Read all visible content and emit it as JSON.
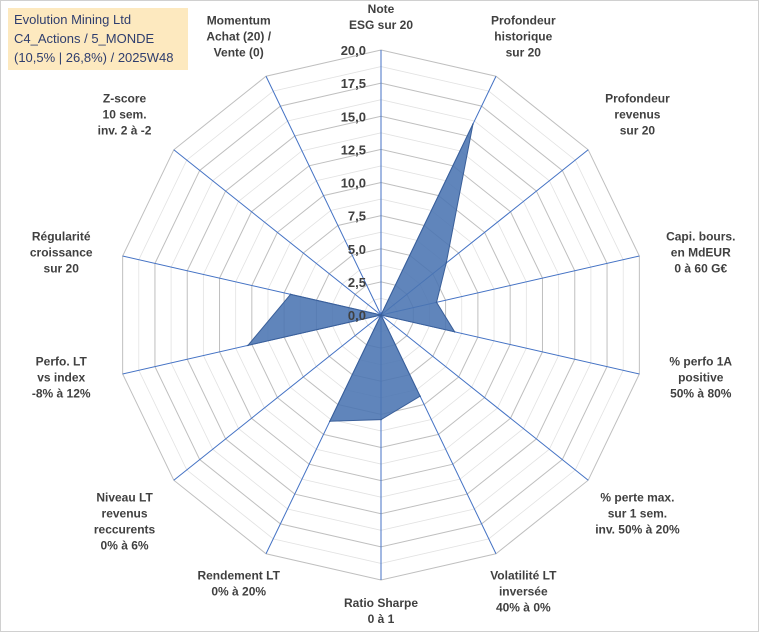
{
  "info_box": {
    "line1": "Evolution Mining Ltd",
    "line2": "C4_Actions / 5_MONDE",
    "line3": "(10,5% | 26,8%) / 2025W48"
  },
  "chart_data": {
    "type": "radar",
    "title": "Evolution Mining Ltd",
    "rlim": [
      0,
      20
    ],
    "ticks": [
      "0,0",
      "2,5",
      "5,0",
      "7,5",
      "10,0",
      "12,5",
      "15,0",
      "17,5",
      "20,0"
    ],
    "tick_values": [
      0,
      2.5,
      5,
      7.5,
      10,
      12.5,
      15,
      17.5,
      20
    ],
    "fill_color": "#4a74b2",
    "grid_color": "#d9d9d9",
    "spoke_color": "#4472c4",
    "axes": [
      {
        "label": [
          "Note",
          "ESG sur 20"
        ],
        "value": 0
      },
      {
        "label": [
          "Profondeur",
          "historique",
          "sur 20"
        ],
        "value": 16
      },
      {
        "label": [
          "Profondeur",
          "revenus",
          "sur 20"
        ],
        "value": 6.3
      },
      {
        "label": [
          "Capi. bours.",
          "en MdEUR",
          "0 à 60 G€"
        ],
        "value": 4.3
      },
      {
        "label": [
          "% perfo 1A",
          "positive",
          "50% à 80%"
        ],
        "value": 5.7
      },
      {
        "label": [
          "% perte max.",
          "sur 1 sem.",
          "inv. 50% à 20%"
        ],
        "value": 0
      },
      {
        "label": [
          "Volatilité LT",
          "inversée",
          "40% à 0%"
        ],
        "value": 6.8
      },
      {
        "label": [
          "Ratio Sharpe",
          "0 à 1"
        ],
        "value": 7.9
      },
      {
        "label": [
          "Rendement LT",
          "0% à 20%"
        ],
        "value": 8.9
      },
      {
        "label": [
          "Niveau LT",
          "revenus",
          "reccurents",
          "0% à 6%"
        ],
        "value": 0
      },
      {
        "label": [
          "Perfo. LT",
          "vs index",
          "-8% à 12%"
        ],
        "value": 10.3
      },
      {
        "label": [
          "Régularité",
          "croissance",
          "sur 20"
        ],
        "value": 7
      },
      {
        "label": [
          "Z-score",
          "10 sem.",
          "inv. 2 à -2"
        ],
        "value": 0
      },
      {
        "label": [
          "Momentum",
          "Achat (20) /",
          "Vente (0)"
        ],
        "value": 0
      }
    ]
  }
}
